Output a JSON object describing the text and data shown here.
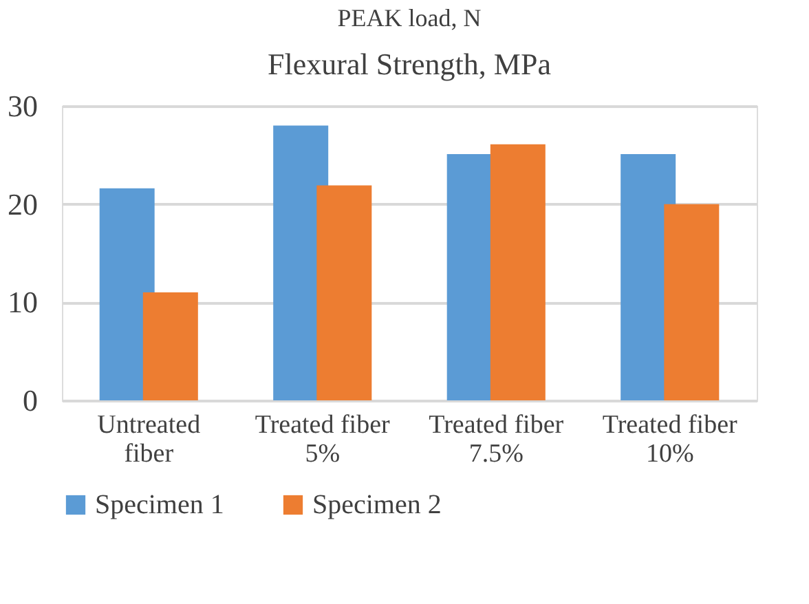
{
  "chart_data": {
    "type": "bar",
    "title": "PEAK load, N",
    "subtitle": "Flexural Strength, MPa",
    "categories": [
      "Untreated fiber",
      "Treated fiber 5%",
      "Treated fiber 7.5%",
      "Treated fiber 10%"
    ],
    "series": [
      {
        "name": "Specimen 1",
        "color": "#5b9bd5",
        "values": [
          21.6,
          28.0,
          25.1,
          25.1
        ]
      },
      {
        "name": "Specimen 2",
        "color": "#ed7d31",
        "values": [
          11.0,
          21.9,
          26.1,
          20.0
        ]
      }
    ],
    "ylim": [
      0,
      30
    ],
    "yticks": [
      0,
      10,
      20,
      30
    ],
    "grid": "y",
    "legend": "bottom"
  }
}
